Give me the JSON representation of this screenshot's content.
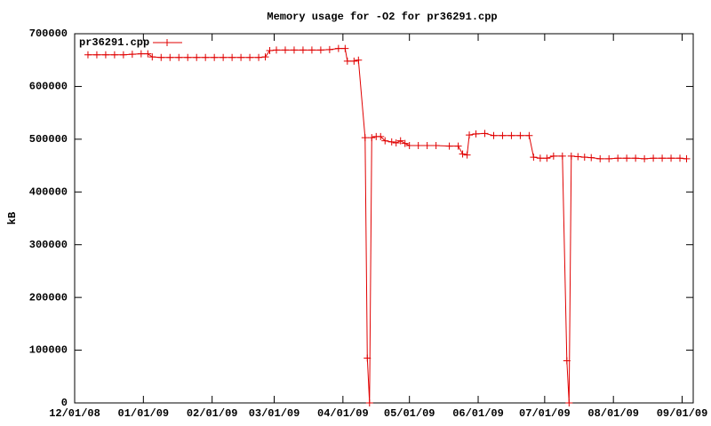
{
  "chart_data": {
    "type": "line",
    "title": "Memory usage for -O2 for pr36291.cpp",
    "y_label": "kB",
    "legend": "top-left",
    "grid": false,
    "xlim": [
      "2008-12-01",
      "2009-09-06"
    ],
    "xticks": [
      {
        "value": "2008-12-01",
        "label": "12/01/08"
      },
      {
        "value": "2009-01-01",
        "label": "01/01/09"
      },
      {
        "value": "2009-02-01",
        "label": "02/01/09"
      },
      {
        "value": "2009-03-01",
        "label": "03/01/09"
      },
      {
        "value": "2009-04-01",
        "label": "04/01/09"
      },
      {
        "value": "2009-05-01",
        "label": "05/01/09"
      },
      {
        "value": "2009-06-01",
        "label": "06/01/09"
      },
      {
        "value": "2009-07-01",
        "label": "07/01/09"
      },
      {
        "value": "2009-08-01",
        "label": "08/01/09"
      },
      {
        "value": "2009-09-01",
        "label": "09/01/09"
      }
    ],
    "ylim": [
      0,
      700000
    ],
    "yticks": [
      0,
      100000,
      200000,
      300000,
      400000,
      500000,
      600000,
      700000
    ],
    "x": [
      "2008-12-07",
      "2008-12-11",
      "2008-12-15",
      "2008-12-19",
      "2008-12-23",
      "2008-12-27",
      "2008-12-31",
      "2009-01-03",
      "2009-01-05",
      "2009-01-09",
      "2009-01-13",
      "2009-01-17",
      "2009-01-21",
      "2009-01-25",
      "2009-01-29",
      "2009-02-02",
      "2009-02-06",
      "2009-02-10",
      "2009-02-14",
      "2009-02-18",
      "2009-02-22",
      "2009-02-25",
      "2009-02-27",
      "2009-03-02",
      "2009-03-06",
      "2009-03-10",
      "2009-03-14",
      "2009-03-18",
      "2009-03-22",
      "2009-03-26",
      "2009-03-30",
      "2009-04-02",
      "2009-04-03",
      "2009-04-06",
      "2009-04-08",
      "2009-04-11",
      "2009-04-12",
      "2009-04-13",
      "2009-04-14",
      "2009-04-16",
      "2009-04-18",
      "2009-04-20",
      "2009-04-23",
      "2009-04-25",
      "2009-04-27",
      "2009-04-29",
      "2009-05-01",
      "2009-05-05",
      "2009-05-09",
      "2009-05-13",
      "2009-05-19",
      "2009-05-23",
      "2009-05-25",
      "2009-05-27",
      "2009-05-28",
      "2009-05-31",
      "2009-06-04",
      "2009-06-08",
      "2009-06-12",
      "2009-06-16",
      "2009-06-20",
      "2009-06-24",
      "2009-06-26",
      "2009-06-29",
      "2009-07-02",
      "2009-07-05",
      "2009-07-09",
      "2009-07-11",
      "2009-07-12",
      "2009-07-13",
      "2009-07-16",
      "2009-07-19",
      "2009-07-22",
      "2009-07-26",
      "2009-07-30",
      "2009-08-03",
      "2009-08-07",
      "2009-08-11",
      "2009-08-15",
      "2009-08-19",
      "2009-08-23",
      "2009-08-27",
      "2009-08-31",
      "2009-09-03"
    ],
    "series": [
      {
        "name": "pr36291.cpp",
        "color": "#e00000",
        "values": [
          660000,
          660000,
          660000,
          660000,
          660000,
          661000,
          662000,
          662000,
          656000,
          655000,
          655000,
          655000,
          655000,
          655000,
          655000,
          655000,
          655000,
          655000,
          655000,
          655000,
          655000,
          656000,
          668000,
          669000,
          669000,
          669000,
          669000,
          669000,
          669000,
          670000,
          672000,
          672000,
          648000,
          648000,
          650000,
          503000,
          85000,
          0,
          503000,
          505000,
          505000,
          497000,
          495000,
          493000,
          497000,
          492000,
          488000,
          488000,
          488000,
          488000,
          487000,
          487000,
          472000,
          470000,
          508000,
          510000,
          511000,
          507000,
          507000,
          507000,
          507000,
          507000,
          466000,
          464000,
          464000,
          468000,
          468000,
          80000,
          0,
          468000,
          467000,
          466000,
          465000,
          463000,
          463000,
          464000,
          464000,
          464000,
          463000,
          464000,
          464000,
          464000,
          464000,
          463000
        ]
      }
    ]
  }
}
